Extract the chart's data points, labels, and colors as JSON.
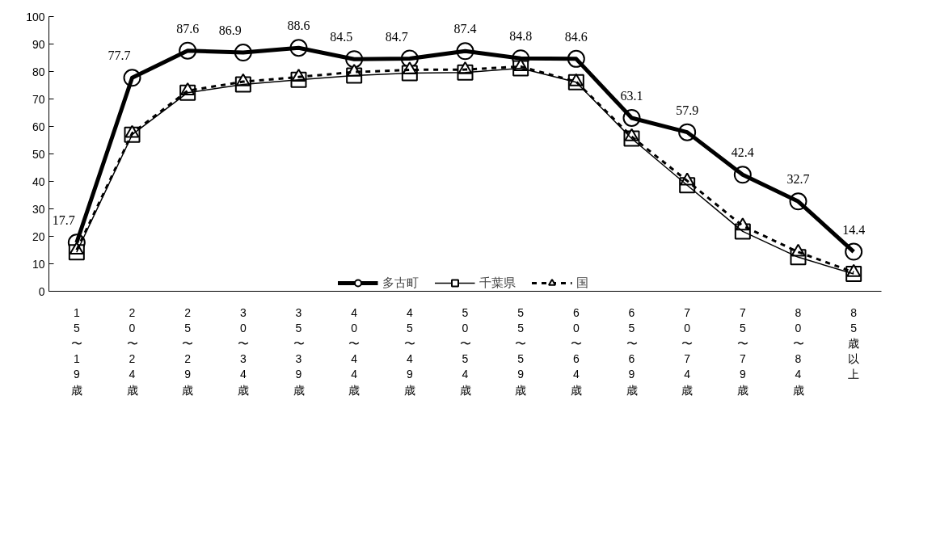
{
  "chart_data": {
    "type": "line",
    "categories": [
      "15〜19歳",
      "20〜24歳",
      "25〜29歳",
      "30〜34歳",
      "35〜39歳",
      "40〜44歳",
      "45〜49歳",
      "50〜54歳",
      "55〜59歳",
      "60〜64歳",
      "65〜69歳",
      "70〜74歳",
      "75〜79歳",
      "80〜84歳",
      "85歳以上"
    ],
    "series": [
      {
        "name": "多古町",
        "color": "#000000",
        "marker": "circle",
        "line_style": "solid",
        "data_labels": true,
        "values": [
          17.7,
          77.7,
          87.6,
          86.9,
          88.6,
          84.5,
          84.7,
          87.4,
          84.8,
          84.6,
          63.1,
          57.9,
          42.4,
          32.7,
          14.4
        ]
      },
      {
        "name": "千葉県",
        "color": "#000000",
        "marker": "square",
        "line_style": "solid",
        "values": [
          14.2,
          57.0,
          72.3,
          75.3,
          77.0,
          78.5,
          79.4,
          79.6,
          81.2,
          76.1,
          55.6,
          38.6,
          21.8,
          12.4,
          6.3
        ]
      },
      {
        "name": "国",
        "color": "#000000",
        "marker": "triangle",
        "line_style": "dashed",
        "values": [
          15.0,
          57.5,
          73.0,
          76.3,
          78.0,
          79.8,
          80.6,
          80.7,
          81.8,
          76.3,
          56.3,
          40.2,
          23.8,
          14.3,
          6.9
        ]
      }
    ],
    "ylim": [
      0,
      100
    ],
    "yticks": [
      0,
      10,
      20,
      30,
      40,
      50,
      60,
      70,
      80,
      90,
      100
    ],
    "grid": false,
    "legend": "bottom"
  }
}
